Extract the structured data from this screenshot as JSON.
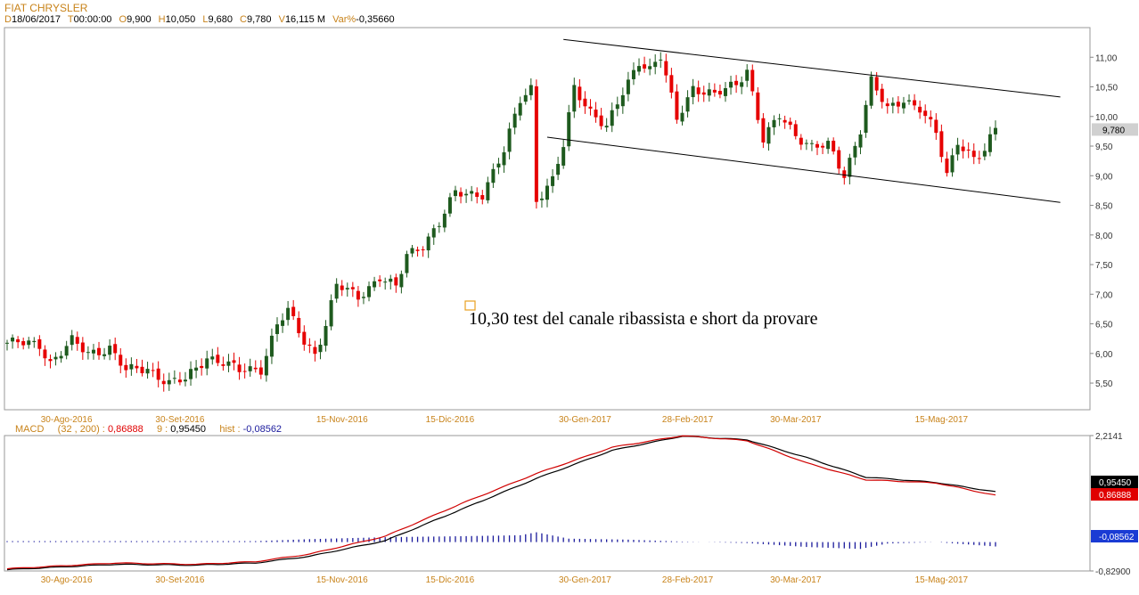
{
  "header": {
    "title": "FIAT CHRYSLER",
    "info": [
      {
        "k": "D",
        "v": "18/06/2017"
      },
      {
        "k": "T",
        "v": "00:00:00"
      },
      {
        "k": "O",
        "v": "9,900"
      },
      {
        "k": "H",
        "v": "10,050"
      },
      {
        "k": "L",
        "v": "9,680"
      },
      {
        "k": "C",
        "v": "9,780"
      },
      {
        "k": "V",
        "v": "16,115 M"
      },
      {
        "k": "Var%",
        "v": "-0,35660"
      }
    ]
  },
  "macd_header": {
    "name": "MACD",
    "params": "(32 , 200) :",
    "macd_value": "0,86888",
    "signal_label": "9 :",
    "signal_value": "0,95450",
    "hist_label": "hist :",
    "hist_value": "-0,08562"
  },
  "colors": {
    "up": "#1e5a1e",
    "down": "#e60000",
    "accent": "#c8831a",
    "macd_line": "#d00000",
    "signal_line": "#000000",
    "hist": "#1a1a9c"
  },
  "annotation": {
    "text": "10,30 test del canale ribassista e short da provare"
  },
  "chart_data": [
    {
      "type": "candlestick",
      "title": "FIAT CHRYSLER",
      "ylim": [
        5.05,
        11.5
      ],
      "y_ticks": [
        "11,00",
        "10,50",
        "10,00",
        "9,50",
        "9,00",
        "8,50",
        "8,00",
        "7,50",
        "7,00",
        "6,50",
        "6,00",
        "5,50"
      ],
      "last_price_label": "9,780",
      "x_tick_labels": [
        "30-Ago-2016",
        "30-Set-2016",
        "15-Nov-2016",
        "15-Dic-2016",
        "30-Gen-2017",
        "28-Feb-2017",
        "30-Mar-2017",
        "15-Mag-2017"
      ],
      "trendlines": [
        {
          "name": "upper-channel",
          "from": {
            "bar": 103,
            "price": 11.3
          },
          "to": {
            "bar": 195,
            "price": 10.33
          }
        },
        {
          "name": "lower-channel",
          "from": {
            "bar": 100,
            "price": 9.65
          },
          "to": {
            "bar": 195,
            "price": 8.55
          }
        }
      ],
      "close_waypoints": [
        [
          0,
          6.18
        ],
        [
          6,
          6.15
        ],
        [
          8,
          5.85
        ],
        [
          12,
          6.2
        ],
        [
          15,
          6.0
        ],
        [
          19,
          6.1
        ],
        [
          22,
          5.7
        ],
        [
          26,
          5.75
        ],
        [
          30,
          5.5
        ],
        [
          33,
          5.55
        ],
        [
          37,
          5.95
        ],
        [
          40,
          5.85
        ],
        [
          43,
          5.7
        ],
        [
          47,
          5.75
        ],
        [
          50,
          6.5
        ],
        [
          52,
          6.7
        ],
        [
          55,
          6.2
        ],
        [
          57,
          6.0
        ],
        [
          59,
          6.5
        ],
        [
          61,
          7.15
        ],
        [
          65,
          6.95
        ],
        [
          69,
          7.3
        ],
        [
          72,
          7.1
        ],
        [
          74,
          7.65
        ],
        [
          77,
          7.85
        ],
        [
          80,
          8.2
        ],
        [
          83,
          8.7
        ],
        [
          88,
          8.7
        ],
        [
          92,
          9.4
        ],
        [
          95,
          10.3
        ],
        [
          97,
          10.5
        ],
        [
          98,
          8.6
        ],
        [
          101,
          8.9
        ],
        [
          103,
          9.5
        ],
        [
          105,
          10.5
        ],
        [
          108,
          10.1
        ],
        [
          111,
          9.8
        ],
        [
          114,
          10.4
        ],
        [
          117,
          10.95
        ],
        [
          119,
          10.8
        ],
        [
          121,
          11.0
        ],
        [
          124,
          9.95
        ],
        [
          127,
          10.5
        ],
        [
          131,
          10.35
        ],
        [
          135,
          10.55
        ],
        [
          137,
          10.8
        ],
        [
          140,
          9.6
        ],
        [
          143,
          10.0
        ],
        [
          146,
          9.7
        ],
        [
          149,
          9.5
        ],
        [
          152,
          9.5
        ],
        [
          155,
          9.0
        ],
        [
          158,
          9.8
        ],
        [
          160,
          10.6
        ],
        [
          163,
          10.1
        ],
        [
          166,
          10.3
        ],
        [
          169,
          10.15
        ],
        [
          172,
          9.7
        ],
        [
          174,
          9.0
        ],
        [
          176,
          9.6
        ],
        [
          179,
          9.3
        ],
        [
          181,
          9.4
        ],
        [
          183,
          9.78
        ]
      ]
    },
    {
      "type": "line",
      "title": "MACD (32 , 200)",
      "ylim": [
        -0.829,
        2.2141
      ],
      "y_ticks": [
        "2,2141",
        "-0,82900"
      ],
      "value_tags": [
        "0,95450",
        "0,86888",
        "-0,08562"
      ],
      "x_tick_labels": [
        "30-Ago-2016",
        "30-Set-2016",
        "15-Nov-2016",
        "15-Dic-2016",
        "30-Gen-2017",
        "28-Feb-2017",
        "30-Mar-2017",
        "15-Mag-2017"
      ],
      "series": [
        {
          "name": "MACD",
          "waypoints": [
            [
              0,
              -0.78
            ],
            [
              20,
              -0.65
            ],
            [
              35,
              -0.68
            ],
            [
              46,
              -0.62
            ],
            [
              56,
              -0.45
            ],
            [
              70,
              -0.05
            ],
            [
              84,
              0.68
            ],
            [
              98,
              1.36
            ],
            [
              112,
              1.95
            ],
            [
              125,
              2.21
            ],
            [
              137,
              2.1
            ],
            [
              148,
              1.6
            ],
            [
              159,
              1.22
            ],
            [
              172,
              1.15
            ],
            [
              183,
              0.87
            ]
          ]
        },
        {
          "name": "9",
          "waypoints": [
            [
              0,
              -0.8
            ],
            [
              20,
              -0.68
            ],
            [
              35,
              -0.7
            ],
            [
              46,
              -0.65
            ],
            [
              56,
              -0.5
            ],
            [
              70,
              -0.15
            ],
            [
              84,
              0.55
            ],
            [
              98,
              1.25
            ],
            [
              112,
              1.88
            ],
            [
              125,
              2.2
            ],
            [
              137,
              2.12
            ],
            [
              148,
              1.72
            ],
            [
              159,
              1.28
            ],
            [
              172,
              1.16
            ],
            [
              183,
              0.95
            ]
          ]
        },
        {
          "name": "hist",
          "waypoints": [
            [
              0,
              0.02
            ],
            [
              46,
              0.02
            ],
            [
              56,
              0.06
            ],
            [
              70,
              0.1
            ],
            [
              84,
              0.12
            ],
            [
              95,
              0.14
            ],
            [
              98,
              0.2
            ],
            [
              104,
              0.07
            ],
            [
              115,
              0.05
            ],
            [
              125,
              0.01
            ],
            [
              137,
              -0.02
            ],
            [
              148,
              -0.1
            ],
            [
              158,
              -0.14
            ],
            [
              163,
              -0.03
            ],
            [
              172,
              0.0
            ],
            [
              183,
              -0.09
            ]
          ]
        }
      ]
    }
  ]
}
